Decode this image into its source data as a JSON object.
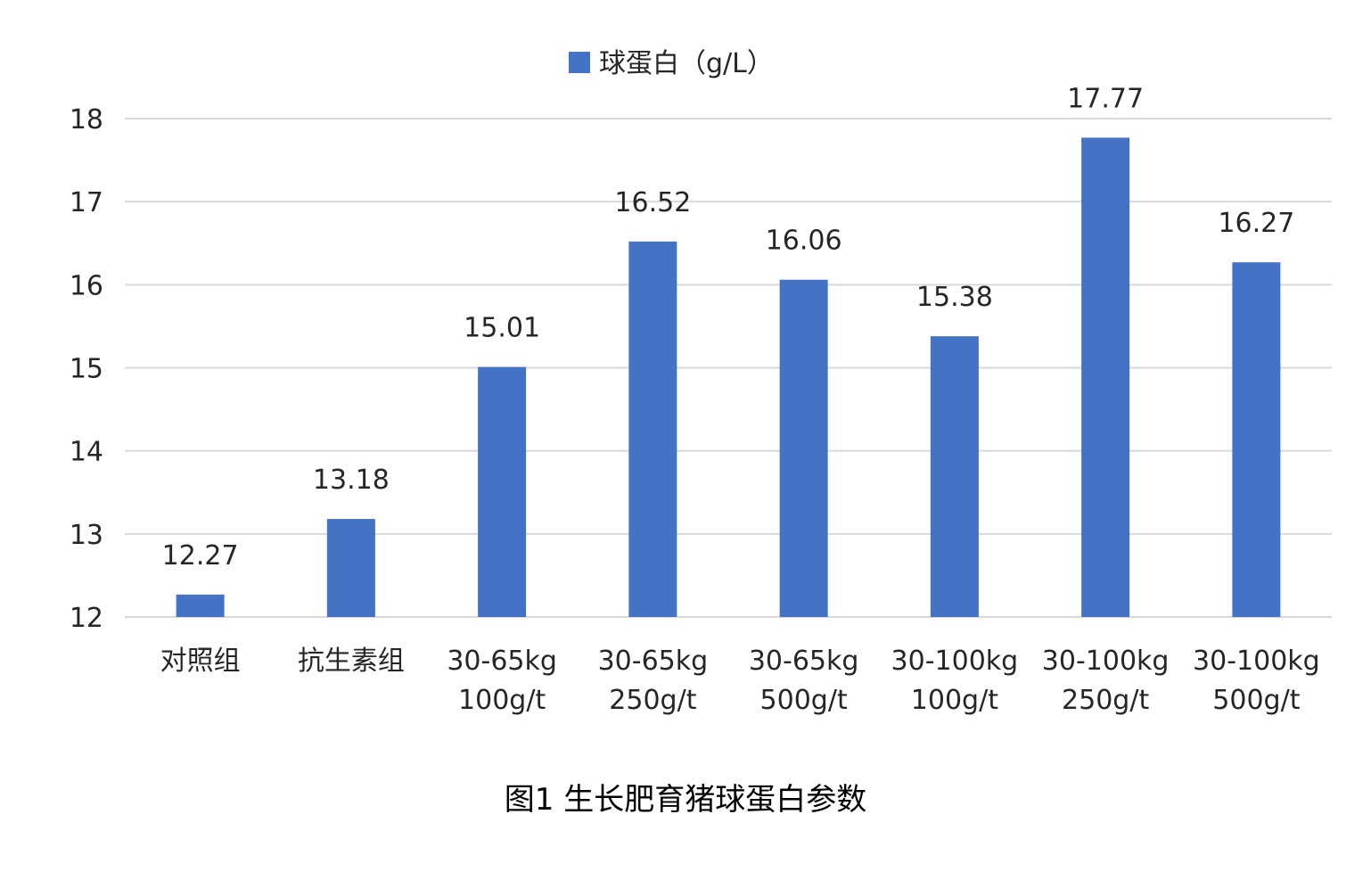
{
  "chart_data": {
    "type": "bar",
    "caption": "图1 生长肥育猪球蛋白参数",
    "categories": [
      [
        "对照组"
      ],
      [
        "抗生素组"
      ],
      [
        "30-65kg",
        "100g/t"
      ],
      [
        "30-65kg",
        "250g/t"
      ],
      [
        "30-65kg",
        "500g/t"
      ],
      [
        "30-100kg",
        "100g/t"
      ],
      [
        "30-100kg",
        "250g/t"
      ],
      [
        "30-100kg",
        "500g/t"
      ]
    ],
    "series": [
      {
        "name": "球蛋白（g/L）",
        "color": "#4472c4",
        "values": [
          12.27,
          13.18,
          15.01,
          16.52,
          16.06,
          15.38,
          17.77,
          16.27
        ],
        "labels": [
          "12.27",
          "13.18",
          "15.01",
          "16.52",
          "16.06",
          "15.38",
          "17.77",
          "16.27"
        ]
      }
    ],
    "ylim": [
      12,
      18
    ],
    "yticks": [
      12,
      13,
      14,
      15,
      16,
      17,
      18
    ],
    "grid": true,
    "legend": "top-center"
  }
}
